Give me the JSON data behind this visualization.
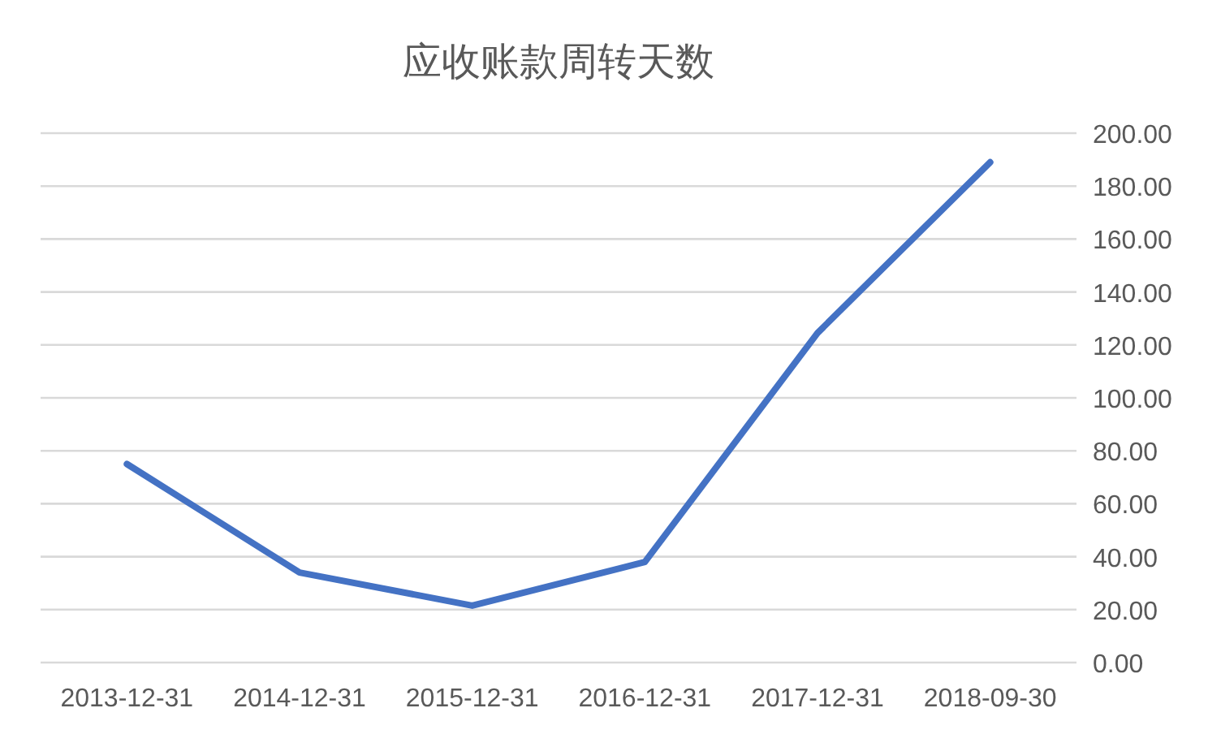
{
  "chart_data": {
    "type": "line",
    "title": "应收账款周转天数",
    "categories": [
      "2013-12-31",
      "2014-12-31",
      "2015-12-31",
      "2016-12-31",
      "2017-12-31",
      "2018-09-30"
    ],
    "series": [
      {
        "color": "#4472c4",
        "values": [
          75,
          34,
          21.5,
          38,
          124.5,
          189
        ]
      }
    ],
    "ylim": [
      0,
      200
    ],
    "yticks": [
      {
        "value": 0,
        "label": "0.00"
      },
      {
        "value": 20,
        "label": "20.00"
      },
      {
        "value": 40,
        "label": "40.00"
      },
      {
        "value": 60,
        "label": "60.00"
      },
      {
        "value": 80,
        "label": "80.00"
      },
      {
        "value": 100,
        "label": "100.00"
      },
      {
        "value": 120,
        "label": "120.00"
      },
      {
        "value": 140,
        "label": "140.00"
      },
      {
        "value": 160,
        "label": "160.00"
      },
      {
        "value": 180,
        "label": "180.00"
      },
      {
        "value": 200,
        "label": "200.00"
      }
    ],
    "grid": "y",
    "marker": "none",
    "line_style": "solid"
  }
}
